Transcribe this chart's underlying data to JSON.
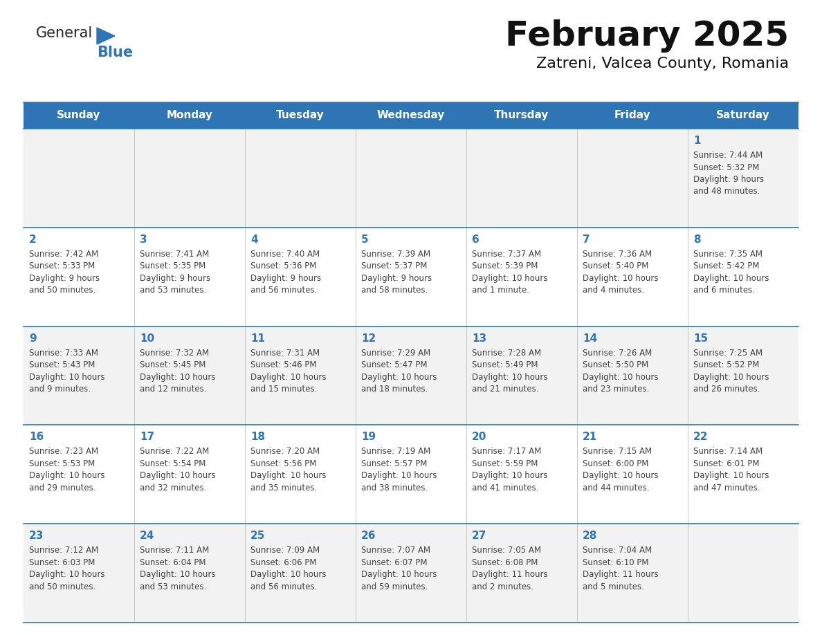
{
  "title": "February 2025",
  "subtitle": "Zatreni, Valcea County, Romania",
  "header_bg": "#2E75B6",
  "header_text": "#FFFFFF",
  "row_bg_light": "#F2F2F2",
  "row_bg_white": "#FFFFFF",
  "cell_border_color": "#2E75B6",
  "day_number_color": "#2E75B6",
  "detail_color": "#404040",
  "days_of_week": [
    "Sunday",
    "Monday",
    "Tuesday",
    "Wednesday",
    "Thursday",
    "Friday",
    "Saturday"
  ],
  "logo_general_color": "#222222",
  "logo_blue_color": "#2E75B6",
  "calendar_data": [
    [
      {
        "day": "",
        "lines": []
      },
      {
        "day": "",
        "lines": []
      },
      {
        "day": "",
        "lines": []
      },
      {
        "day": "",
        "lines": []
      },
      {
        "day": "",
        "lines": []
      },
      {
        "day": "",
        "lines": []
      },
      {
        "day": "1",
        "lines": [
          "Sunrise: 7:44 AM",
          "Sunset: 5:32 PM",
          "Daylight: 9 hours",
          "and 48 minutes."
        ]
      }
    ],
    [
      {
        "day": "2",
        "lines": [
          "Sunrise: 7:42 AM",
          "Sunset: 5:33 PM",
          "Daylight: 9 hours",
          "and 50 minutes."
        ]
      },
      {
        "day": "3",
        "lines": [
          "Sunrise: 7:41 AM",
          "Sunset: 5:35 PM",
          "Daylight: 9 hours",
          "and 53 minutes."
        ]
      },
      {
        "day": "4",
        "lines": [
          "Sunrise: 7:40 AM",
          "Sunset: 5:36 PM",
          "Daylight: 9 hours",
          "and 56 minutes."
        ]
      },
      {
        "day": "5",
        "lines": [
          "Sunrise: 7:39 AM",
          "Sunset: 5:37 PM",
          "Daylight: 9 hours",
          "and 58 minutes."
        ]
      },
      {
        "day": "6",
        "lines": [
          "Sunrise: 7:37 AM",
          "Sunset: 5:39 PM",
          "Daylight: 10 hours",
          "and 1 minute."
        ]
      },
      {
        "day": "7",
        "lines": [
          "Sunrise: 7:36 AM",
          "Sunset: 5:40 PM",
          "Daylight: 10 hours",
          "and 4 minutes."
        ]
      },
      {
        "day": "8",
        "lines": [
          "Sunrise: 7:35 AM",
          "Sunset: 5:42 PM",
          "Daylight: 10 hours",
          "and 6 minutes."
        ]
      }
    ],
    [
      {
        "day": "9",
        "lines": [
          "Sunrise: 7:33 AM",
          "Sunset: 5:43 PM",
          "Daylight: 10 hours",
          "and 9 minutes."
        ]
      },
      {
        "day": "10",
        "lines": [
          "Sunrise: 7:32 AM",
          "Sunset: 5:45 PM",
          "Daylight: 10 hours",
          "and 12 minutes."
        ]
      },
      {
        "day": "11",
        "lines": [
          "Sunrise: 7:31 AM",
          "Sunset: 5:46 PM",
          "Daylight: 10 hours",
          "and 15 minutes."
        ]
      },
      {
        "day": "12",
        "lines": [
          "Sunrise: 7:29 AM",
          "Sunset: 5:47 PM",
          "Daylight: 10 hours",
          "and 18 minutes."
        ]
      },
      {
        "day": "13",
        "lines": [
          "Sunrise: 7:28 AM",
          "Sunset: 5:49 PM",
          "Daylight: 10 hours",
          "and 21 minutes."
        ]
      },
      {
        "day": "14",
        "lines": [
          "Sunrise: 7:26 AM",
          "Sunset: 5:50 PM",
          "Daylight: 10 hours",
          "and 23 minutes."
        ]
      },
      {
        "day": "15",
        "lines": [
          "Sunrise: 7:25 AM",
          "Sunset: 5:52 PM",
          "Daylight: 10 hours",
          "and 26 minutes."
        ]
      }
    ],
    [
      {
        "day": "16",
        "lines": [
          "Sunrise: 7:23 AM",
          "Sunset: 5:53 PM",
          "Daylight: 10 hours",
          "and 29 minutes."
        ]
      },
      {
        "day": "17",
        "lines": [
          "Sunrise: 7:22 AM",
          "Sunset: 5:54 PM",
          "Daylight: 10 hours",
          "and 32 minutes."
        ]
      },
      {
        "day": "18",
        "lines": [
          "Sunrise: 7:20 AM",
          "Sunset: 5:56 PM",
          "Daylight: 10 hours",
          "and 35 minutes."
        ]
      },
      {
        "day": "19",
        "lines": [
          "Sunrise: 7:19 AM",
          "Sunset: 5:57 PM",
          "Daylight: 10 hours",
          "and 38 minutes."
        ]
      },
      {
        "day": "20",
        "lines": [
          "Sunrise: 7:17 AM",
          "Sunset: 5:59 PM",
          "Daylight: 10 hours",
          "and 41 minutes."
        ]
      },
      {
        "day": "21",
        "lines": [
          "Sunrise: 7:15 AM",
          "Sunset: 6:00 PM",
          "Daylight: 10 hours",
          "and 44 minutes."
        ]
      },
      {
        "day": "22",
        "lines": [
          "Sunrise: 7:14 AM",
          "Sunset: 6:01 PM",
          "Daylight: 10 hours",
          "and 47 minutes."
        ]
      }
    ],
    [
      {
        "day": "23",
        "lines": [
          "Sunrise: 7:12 AM",
          "Sunset: 6:03 PM",
          "Daylight: 10 hours",
          "and 50 minutes."
        ]
      },
      {
        "day": "24",
        "lines": [
          "Sunrise: 7:11 AM",
          "Sunset: 6:04 PM",
          "Daylight: 10 hours",
          "and 53 minutes."
        ]
      },
      {
        "day": "25",
        "lines": [
          "Sunrise: 7:09 AM",
          "Sunset: 6:06 PM",
          "Daylight: 10 hours",
          "and 56 minutes."
        ]
      },
      {
        "day": "26",
        "lines": [
          "Sunrise: 7:07 AM",
          "Sunset: 6:07 PM",
          "Daylight: 10 hours",
          "and 59 minutes."
        ]
      },
      {
        "day": "27",
        "lines": [
          "Sunrise: 7:05 AM",
          "Sunset: 6:08 PM",
          "Daylight: 11 hours",
          "and 2 minutes."
        ]
      },
      {
        "day": "28",
        "lines": [
          "Sunrise: 7:04 AM",
          "Sunset: 6:10 PM",
          "Daylight: 11 hours",
          "and 5 minutes."
        ]
      },
      {
        "day": "",
        "lines": []
      }
    ]
  ],
  "fig_width": 11.88,
  "fig_height": 9.18,
  "dpi": 100
}
